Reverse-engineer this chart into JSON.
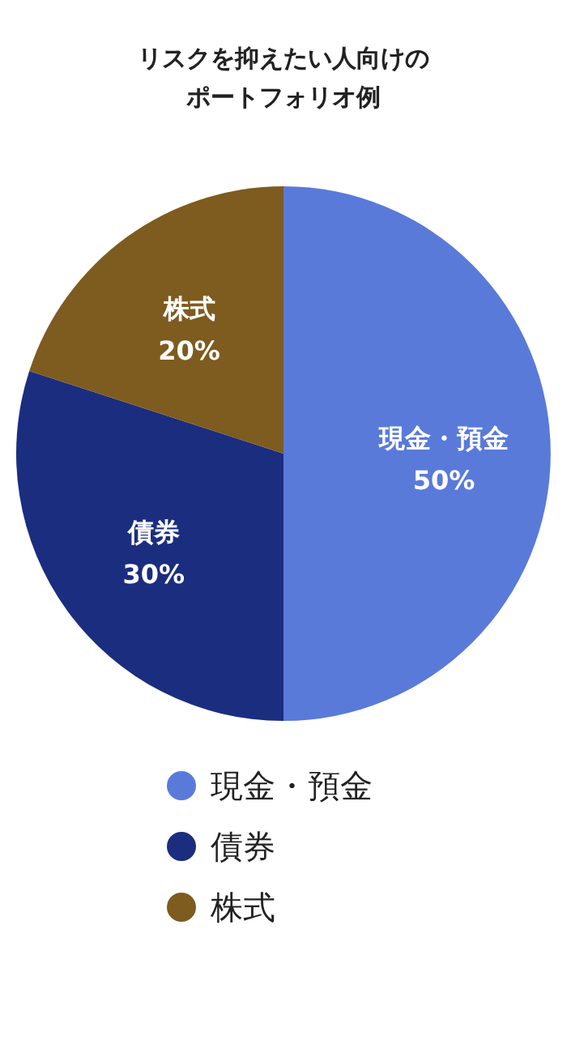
{
  "chart_data": {
    "type": "pie",
    "title": "リスクを抑えたい人向けのポートフォリオ例",
    "categories": [
      "現金・預金",
      "債券",
      "株式"
    ],
    "values": [
      50,
      30,
      20
    ],
    "colors": [
      "#5a7ada",
      "#1b2d7f",
      "#7e5b1e"
    ],
    "value_labels": [
      "50%",
      "30%",
      "20%"
    ],
    "legend": "bottom"
  }
}
